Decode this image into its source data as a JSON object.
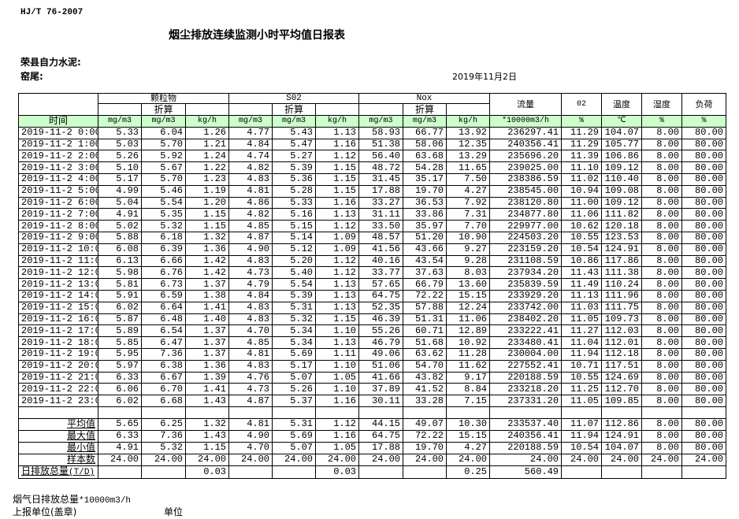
{
  "document": {
    "standard": "HJ/T  76-2007",
    "title": "烟尘排放连续监测小时平均值日报表",
    "company": "荣县自力水泥:",
    "unit": "窑尾:",
    "date": "2019年11月2日"
  },
  "table": {
    "groups": {
      "particulate": "颗粒物",
      "so2": "S02",
      "nox": "Nox"
    },
    "converted": "折算",
    "flow": "流量",
    "o2": "02",
    "temperature": "温度",
    "humidity": "湿度",
    "load": "负荷",
    "units": [
      "时间",
      "mg/m3",
      "mg/m3",
      "kg/h",
      "mg/m3",
      "mg/m3",
      "kg/h",
      "mg/m3",
      "mg/m3",
      "kg/h",
      "*10000m3/h",
      "%",
      "℃",
      "%",
      "%"
    ],
    "rows": [
      [
        "2019-11-2 0:00",
        "5.33",
        "6.04",
        "1.26",
        "4.77",
        "5.43",
        "1.13",
        "58.93",
        "66.77",
        "13.92",
        "236297.41",
        "11.29",
        "104.07",
        "8.00",
        "80.00"
      ],
      [
        "2019-11-2 1:00",
        "5.03",
        "5.70",
        "1.21",
        "4.84",
        "5.47",
        "1.16",
        "51.38",
        "58.06",
        "12.35",
        "240356.41",
        "11.29",
        "105.77",
        "8.00",
        "80.00"
      ],
      [
        "2019-11-2 2:00",
        "5.26",
        "5.92",
        "1.24",
        "4.74",
        "5.27",
        "1.12",
        "56.40",
        "63.68",
        "13.29",
        "235696.20",
        "11.39",
        "106.86",
        "8.00",
        "80.00"
      ],
      [
        "2019-11-2 3:00",
        "5.10",
        "5.67",
        "1.22",
        "4.82",
        "5.39",
        "1.15",
        "48.72",
        "54.28",
        "11.65",
        "239025.00",
        "11.10",
        "109.12",
        "8.00",
        "80.00"
      ],
      [
        "2019-11-2 4:00",
        "5.17",
        "5.70",
        "1.23",
        "4.83",
        "5.36",
        "1.15",
        "31.45",
        "35.17",
        "7.50",
        "238386.59",
        "11.02",
        "110.40",
        "8.00",
        "80.00"
      ],
      [
        "2019-11-2 5:00",
        "4.99",
        "5.46",
        "1.19",
        "4.81",
        "5.28",
        "1.15",
        "17.88",
        "19.70",
        "4.27",
        "238545.00",
        "10.94",
        "109.08",
        "8.00",
        "80.00"
      ],
      [
        "2019-11-2 6:00",
        "5.04",
        "5.54",
        "1.20",
        "4.86",
        "5.33",
        "1.16",
        "33.27",
        "36.53",
        "7.92",
        "238120.80",
        "11.00",
        "109.12",
        "8.00",
        "80.00"
      ],
      [
        "2019-11-2 7:00",
        "4.91",
        "5.35",
        "1.15",
        "4.82",
        "5.16",
        "1.13",
        "31.11",
        "33.86",
        "7.31",
        "234877.80",
        "11.06",
        "111.82",
        "8.00",
        "80.00"
      ],
      [
        "2019-11-2 8:00",
        "5.02",
        "5.32",
        "1.15",
        "4.85",
        "5.15",
        "1.12",
        "33.50",
        "35.97",
        "7.70",
        "229977.00",
        "10.62",
        "120.18",
        "8.00",
        "80.00"
      ],
      [
        "2019-11-2 9:00",
        "5.88",
        "6.18",
        "1.32",
        "4.87",
        "5.14",
        "1.09",
        "48.57",
        "51.20",
        "10.90",
        "224503.20",
        "10.55",
        "123.53",
        "8.00",
        "80.00"
      ],
      [
        "2019-11-2 10:00",
        "6.08",
        "6.39",
        "1.36",
        "4.90",
        "5.12",
        "1.09",
        "41.56",
        "43.66",
        "9.27",
        "223159.20",
        "10.54",
        "124.91",
        "8.00",
        "80.00"
      ],
      [
        "2019-11-2 11:00",
        "6.13",
        "6.66",
        "1.42",
        "4.83",
        "5.20",
        "1.12",
        "40.16",
        "43.54",
        "9.28",
        "231108.59",
        "10.86",
        "117.86",
        "8.00",
        "80.00"
      ],
      [
        "2019-11-2 12:00",
        "5.98",
        "6.76",
        "1.42",
        "4.73",
        "5.40",
        "1.12",
        "33.77",
        "37.63",
        "8.03",
        "237934.20",
        "11.43",
        "111.38",
        "8.00",
        "80.00"
      ],
      [
        "2019-11-2 13:00",
        "5.81",
        "6.73",
        "1.37",
        "4.79",
        "5.54",
        "1.13",
        "57.65",
        "66.79",
        "13.60",
        "235839.59",
        "11.49",
        "110.24",
        "8.00",
        "80.00"
      ],
      [
        "2019-11-2 14:00",
        "5.91",
        "6.59",
        "1.38",
        "4.84",
        "5.39",
        "1.13",
        "64.75",
        "72.22",
        "15.15",
        "233929.20",
        "11.13",
        "111.96",
        "8.00",
        "80.00"
      ],
      [
        "2019-11-2 15:00",
        "6.02",
        "6.64",
        "1.41",
        "4.83",
        "5.31",
        "1.13",
        "52.35",
        "57.88",
        "12.24",
        "233742.00",
        "11.03",
        "111.75",
        "8.00",
        "80.00"
      ],
      [
        "2019-11-2 16:00",
        "5.87",
        "6.48",
        "1.40",
        "4.83",
        "5.32",
        "1.15",
        "46.39",
        "51.31",
        "11.06",
        "238402.20",
        "11.05",
        "109.73",
        "8.00",
        "80.00"
      ],
      [
        "2019-11-2 17:00",
        "5.89",
        "6.54",
        "1.37",
        "4.70",
        "5.34",
        "1.10",
        "55.26",
        "60.71",
        "12.89",
        "233222.41",
        "11.27",
        "112.03",
        "8.00",
        "80.00"
      ],
      [
        "2019-11-2 18:00",
        "5.85",
        "6.47",
        "1.37",
        "4.85",
        "5.34",
        "1.13",
        "46.79",
        "51.68",
        "10.92",
        "233480.41",
        "11.04",
        "112.01",
        "8.00",
        "80.00"
      ],
      [
        "2019-11-2 19:00",
        "5.95",
        "7.36",
        "1.37",
        "4.81",
        "5.69",
        "1.11",
        "49.06",
        "63.62",
        "11.28",
        "230004.00",
        "11.94",
        "112.18",
        "8.00",
        "80.00"
      ],
      [
        "2019-11-2 20:00",
        "5.97",
        "6.38",
        "1.36",
        "4.83",
        "5.17",
        "1.10",
        "51.06",
        "54.70",
        "11.62",
        "227552.41",
        "10.71",
        "117.51",
        "8.00",
        "80.00"
      ],
      [
        "2019-11-2 21:00",
        "6.33",
        "6.67",
        "1.39",
        "4.76",
        "5.07",
        "1.05",
        "41.66",
        "43.82",
        "9.17",
        "220188.59",
        "10.55",
        "124.69",
        "8.00",
        "80.00"
      ],
      [
        "2019-11-2 22:00",
        "6.06",
        "6.70",
        "1.41",
        "4.73",
        "5.26",
        "1.10",
        "37.89",
        "41.52",
        "8.84",
        "233218.20",
        "11.25",
        "112.70",
        "8.00",
        "80.00"
      ],
      [
        "2019-11-2 23:00",
        "6.02",
        "6.68",
        "1.43",
        "4.87",
        "5.37",
        "1.16",
        "30.11",
        "33.28",
        "7.15",
        "237331.20",
        "11.05",
        "109.85",
        "8.00",
        "80.00"
      ]
    ],
    "stats": [
      [
        "平均值",
        "5.65",
        "6.25",
        "1.32",
        "4.81",
        "5.31",
        "1.12",
        "44.15",
        "49.07",
        "10.30",
        "233537.40",
        "11.07",
        "112.86",
        "8.00",
        "80.00"
      ],
      [
        "最大值",
        "6.33",
        "7.36",
        "1.43",
        "4.90",
        "5.69",
        "1.16",
        "64.75",
        "72.22",
        "15.15",
        "240356.41",
        "11.94",
        "124.91",
        "8.00",
        "80.00"
      ],
      [
        "最小值",
        "4.91",
        "5.32",
        "1.15",
        "4.70",
        "5.07",
        "1.05",
        "17.88",
        "19.70",
        "4.27",
        "220188.59",
        "10.54",
        "104.07",
        "8.00",
        "80.00"
      ],
      [
        "样本数",
        "24.00",
        "24.00",
        "24.00",
        "24.00",
        "24.00",
        "24.00",
        "24.00",
        "24.00",
        "24.00",
        "24.00",
        "24.00",
        "24.00",
        "24.00",
        "24.00"
      ]
    ],
    "daily_total": {
      "label": "日排放总量",
      "label_unit": "(T/D)",
      "values": [
        "",
        "",
        "0.03",
        "",
        "",
        "0.03",
        "",
        "",
        "0.25",
        "560.49",
        "",
        "",
        "",
        ""
      ]
    }
  },
  "footer": {
    "flue_gas_total_label": "烟气日排放总量",
    "flue_gas_total_unit": "*10000m3/h",
    "reporting_unit_label": "上报单位(盖章)",
    "unit_label": "单位"
  }
}
